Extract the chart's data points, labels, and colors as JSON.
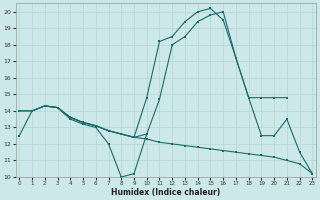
{
  "xlabel": "Humidex (Indice chaleur)",
  "bg_color": "#cde8e8",
  "grid_color": "#b8d8d8",
  "line_color": "#1a6b6b",
  "xlim": [
    -0.3,
    23.3
  ],
  "ylim": [
    10,
    20.5
  ],
  "yticks": [
    10,
    11,
    12,
    13,
    14,
    15,
    16,
    17,
    18,
    19,
    20
  ],
  "xticks": [
    0,
    1,
    2,
    3,
    4,
    5,
    6,
    7,
    8,
    9,
    10,
    11,
    12,
    13,
    14,
    15,
    16,
    17,
    18,
    19,
    20,
    21,
    22,
    23
  ],
  "series": [
    {
      "x": [
        0,
        1,
        2,
        3,
        4,
        5,
        6,
        7,
        8,
        9,
        10
      ],
      "y": [
        12.5,
        14.0,
        14.3,
        14.2,
        13.5,
        13.2,
        13.0,
        12.0,
        10.0,
        10.2,
        12.6
      ]
    },
    {
      "x": [
        0,
        1,
        2,
        3,
        4,
        5,
        6,
        7,
        8,
        9,
        10,
        11,
        12,
        13,
        14,
        15,
        16,
        17,
        18,
        19,
        20,
        21,
        22,
        23
      ],
      "y": [
        14.0,
        14.0,
        14.3,
        14.2,
        13.6,
        13.3,
        13.1,
        12.8,
        12.6,
        12.4,
        12.3,
        12.1,
        12.0,
        11.9,
        11.8,
        11.7,
        11.6,
        11.5,
        11.4,
        11.3,
        11.2,
        11.0,
        10.8,
        10.2
      ]
    },
    {
      "x": [
        0,
        1,
        2,
        3,
        4,
        5,
        6,
        7,
        8,
        9,
        10,
        11,
        12,
        13,
        14,
        15,
        16,
        17,
        18,
        19,
        20,
        21
      ],
      "y": [
        14.0,
        14.0,
        14.3,
        14.2,
        13.6,
        13.3,
        13.1,
        12.8,
        12.6,
        12.4,
        14.8,
        18.2,
        18.5,
        19.4,
        20.0,
        20.2,
        19.5,
        17.2,
        14.8,
        14.8,
        14.8,
        14.8
      ]
    },
    {
      "x": [
        2,
        3,
        4,
        5,
        6,
        7,
        8,
        9,
        10,
        11,
        12,
        13,
        14,
        15,
        16,
        17,
        18,
        19,
        20,
        21,
        22,
        23
      ],
      "y": [
        14.3,
        14.2,
        13.6,
        13.3,
        13.1,
        12.8,
        12.6,
        12.4,
        12.6,
        14.7,
        18.0,
        18.5,
        19.4,
        19.8,
        20.0,
        17.2,
        14.8,
        12.5,
        12.5,
        13.5,
        11.5,
        10.2
      ]
    }
  ]
}
